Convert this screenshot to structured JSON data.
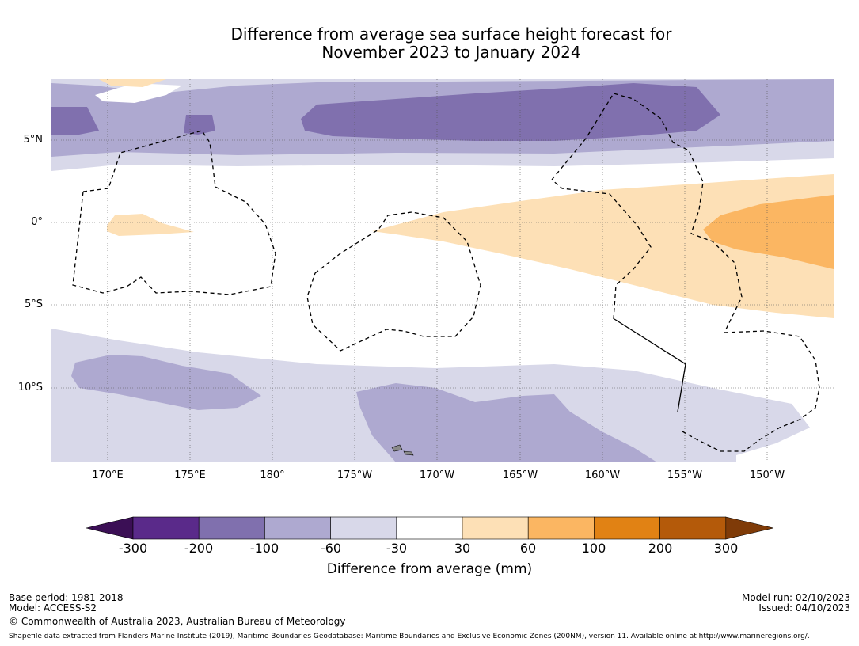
{
  "title_line1": "Difference from average sea surface height forecast for",
  "title_line2": "November 2023 to January 2024",
  "map": {
    "lon_labels": [
      "170°E",
      "175°E",
      "180°",
      "175°W",
      "170°W",
      "165°W",
      "160°W",
      "155°W",
      "150°W"
    ],
    "lat_labels": [
      "5°N",
      "0°",
      "5°S",
      "10°S"
    ]
  },
  "colorbar": {
    "ticks": [
      "-300",
      "-200",
      "-100",
      "-60",
      "-30",
      "30",
      "60",
      "100",
      "200",
      "300"
    ],
    "colors": [
      "#3b0f55",
      "#5a2a8a",
      "#8070ae",
      "#aea9d0",
      "#d8d8e9",
      "#ffffff",
      "#fde0b6",
      "#fbb662",
      "#e18214",
      "#b45a0a",
      "#7f3b08"
    ],
    "label": "Difference from average (mm)"
  },
  "footer": {
    "base_period": "Base period: 1981-2018",
    "model": "Model: ACCESS-S2",
    "copyright": "© Commonwealth of Australia 2023, Australian Bureau of Meteorology",
    "model_run": "Model run: 02/10/2023",
    "issued": "Issued: 04/10/2023",
    "shapefile": "Shapefile data extracted from Flanders Marine Institute (2019), Maritime Boundaries Geodatabase: Maritime Boundaries and Exclusive Economic Zones (200NM), version 11. Available online at http://www.marineregions.org/."
  }
}
